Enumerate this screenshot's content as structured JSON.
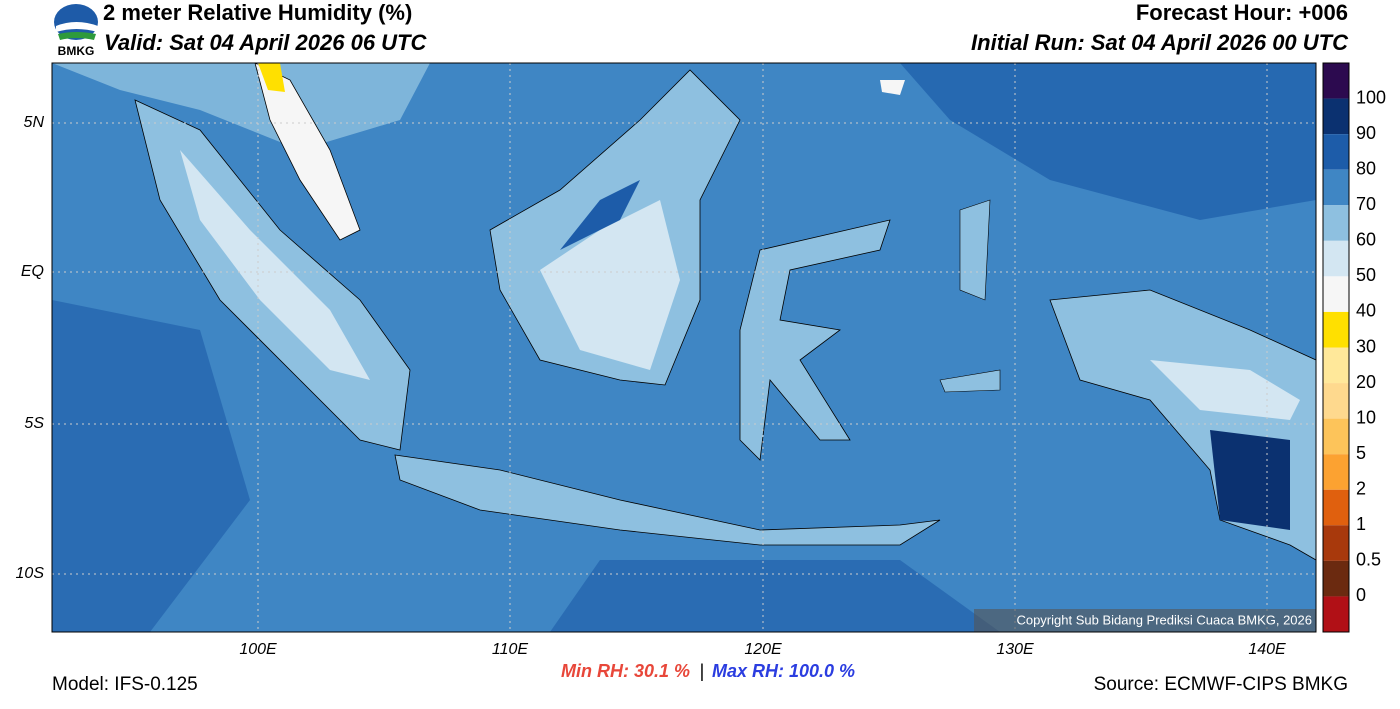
{
  "header": {
    "title": "2 meter Relative Humidity (%)",
    "valid": "Valid: Sat 04 April 2026 06 UTC",
    "forecast_hour": "Forecast Hour: +006",
    "initial_run": "Initial Run: Sat 04 April 2026 00 UTC",
    "logo": "BMKG"
  },
  "map": {
    "lat_labels": [
      "5N",
      "EQ",
      "5S",
      "10S"
    ],
    "lon_labels": [
      "100E",
      "110E",
      "120E",
      "130E",
      "140E"
    ],
    "copyright": "Copyright Sub Bidang Prediksi Cuaca BMKG, 2026"
  },
  "colorbar": {
    "labels": [
      "100",
      "90",
      "80",
      "70",
      "60",
      "50",
      "40",
      "30",
      "20",
      "10",
      "5",
      "2",
      "1",
      "0.5",
      "0"
    ],
    "colors": [
      "#2c0a4f",
      "#0b3170",
      "#1d5ca9",
      "#3f86c4",
      "#8ec0e0",
      "#d3e6f2",
      "#f6f6f6",
      "#ffe000",
      "#ffe89a",
      "#fed98e",
      "#fdc45a",
      "#fca231",
      "#e0600e",
      "#a8390c",
      "#6b2a10",
      "#b11016",
      "#e8473a"
    ]
  },
  "footer": {
    "model": "Model: IFS-0.125",
    "min_rh": "Min RH:  30.1 %",
    "separator": "|",
    "max_rh": "Max RH: 100.0 %",
    "source": "Source: ECMWF-CIPS BMKG"
  }
}
